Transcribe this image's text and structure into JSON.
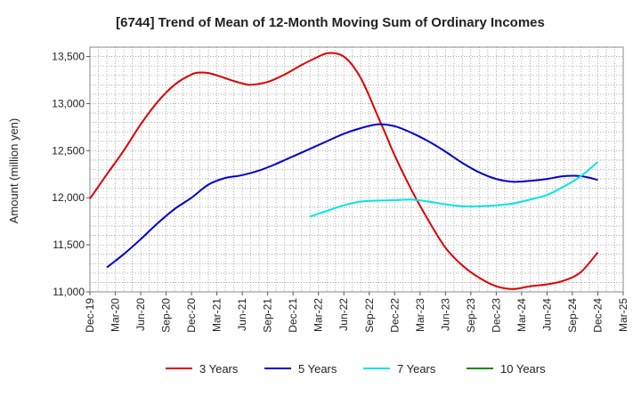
{
  "chart_data": {
    "type": "line",
    "title": "[6744]  Trend of Mean of 12-Month Moving Sum of Ordinary Incomes",
    "xlabel": "",
    "ylabel": "Amount (million yen)",
    "ylim": [
      11000,
      13600
    ],
    "yticks": [
      11000,
      11500,
      12000,
      12500,
      13000,
      13500
    ],
    "ytick_labels": [
      "11,000",
      "11,500",
      "12,000",
      "12,500",
      "13,000",
      "13,500"
    ],
    "x_ticks": [
      "Dec-19",
      "Mar-20",
      "Jun-20",
      "Sep-20",
      "Dec-20",
      "Mar-21",
      "Jun-21",
      "Sep-21",
      "Dec-21",
      "Mar-22",
      "Jun-22",
      "Sep-22",
      "Dec-22",
      "Mar-23",
      "Jun-23",
      "Sep-23",
      "Dec-23",
      "Mar-24",
      "Jun-24",
      "Sep-24",
      "Dec-24",
      "Mar-25"
    ],
    "x_range_quarters": [
      0,
      21
    ],
    "grid": true,
    "legend_position": "bottom",
    "series": [
      {
        "name": "3 Years",
        "color": "#dd0000",
        "x": [
          0,
          0.67,
          1.33,
          2,
          2.67,
          3.33,
          4,
          4.33,
          4.67,
          5,
          5.67,
          6,
          6.33,
          7,
          7.67,
          8.33,
          9,
          9.33,
          9.67,
          10,
          10.33,
          10.67,
          11,
          11.33,
          11.67,
          12,
          12.67,
          13.33,
          14,
          14.67,
          15.33,
          16,
          16.67,
          17.33,
          18,
          18.67,
          19.33,
          20
        ],
        "values": [
          11990,
          12250,
          12500,
          12780,
          13020,
          13200,
          13310,
          13330,
          13325,
          13300,
          13240,
          13215,
          13200,
          13230,
          13310,
          13410,
          13500,
          13535,
          13535,
          13500,
          13410,
          13270,
          13080,
          12870,
          12660,
          12450,
          12080,
          11760,
          11470,
          11280,
          11150,
          11060,
          11030,
          11060,
          11080,
          11120,
          11210,
          11420
        ]
      },
      {
        "name": "5 Years",
        "color": "#0000cc",
        "x": [
          0.67,
          1.33,
          2,
          2.67,
          3.33,
          4,
          4.67,
          5.33,
          6,
          6.67,
          7.33,
          8,
          8.67,
          9.33,
          10,
          10.67,
          11.33,
          12,
          12.67,
          13.33,
          14,
          14.67,
          15.33,
          16,
          16.67,
          17.33,
          18,
          18.67,
          19.33,
          20
        ],
        "values": [
          11260,
          11400,
          11560,
          11730,
          11880,
          12000,
          12140,
          12210,
          12240,
          12290,
          12360,
          12440,
          12520,
          12600,
          12680,
          12740,
          12780,
          12760,
          12690,
          12600,
          12490,
          12370,
          12270,
          12200,
          12170,
          12180,
          12200,
          12230,
          12230,
          12190
        ]
      },
      {
        "name": "7 Years",
        "color": "#00e5e5",
        "x": [
          8.67,
          9.33,
          10,
          10.67,
          11.33,
          12,
          12.67,
          13.33,
          14,
          14.67,
          15.33,
          16,
          16.67,
          17.33,
          18,
          18.67,
          19.33,
          20
        ],
        "values": [
          11800,
          11860,
          11920,
          11960,
          11970,
          11975,
          11980,
          11960,
          11930,
          11910,
          11910,
          11920,
          11940,
          11980,
          12030,
          12120,
          12230,
          12380
        ]
      },
      {
        "name": "10 Years",
        "color": "#118811",
        "x": [],
        "values": []
      }
    ]
  }
}
